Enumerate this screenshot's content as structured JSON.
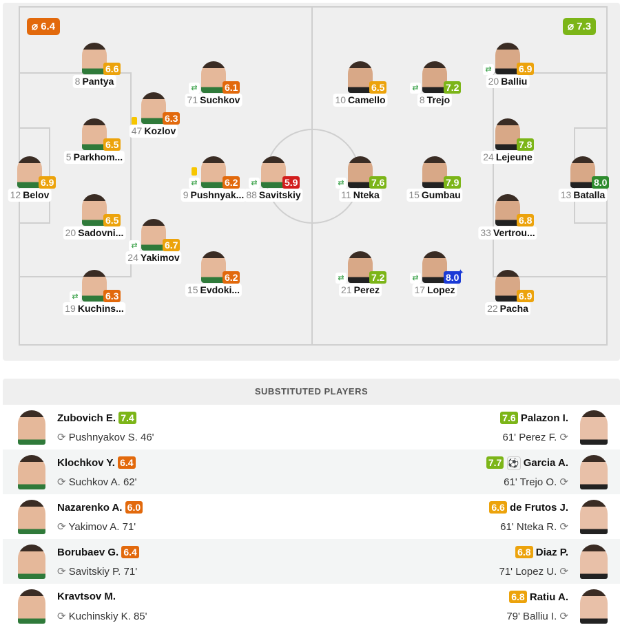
{
  "colors": {
    "r60": "#e2690c",
    "r65": "#eca30c",
    "r70": "#7cb518",
    "r80": "#2e8b2e",
    "low": "#d21e1e",
    "best": "#1a3ad6"
  },
  "home": {
    "avg_label": "⌀ 6.4",
    "avg_color": "#e2690c",
    "players": [
      {
        "num": "8",
        "name": "Pantya",
        "rating": "6.6"
      },
      {
        "num": "71",
        "name": "Suchkov",
        "rating": "6.1",
        "sub": true
      },
      {
        "num": "47",
        "name": "Kozlov",
        "rating": "6.3",
        "yellow": true
      },
      {
        "num": "5",
        "name": "Parkhom...",
        "rating": "6.5"
      },
      {
        "num": "12",
        "name": "Belov",
        "rating": "6.9"
      },
      {
        "num": "9",
        "name": "Pushnyak...",
        "rating": "6.2",
        "yellow": true,
        "sub": true
      },
      {
        "num": "88",
        "name": "Savitskiy",
        "rating": "5.9",
        "sub": true
      },
      {
        "num": "20",
        "name": "Sadovni...",
        "rating": "6.5"
      },
      {
        "num": "24",
        "name": "Yakimov",
        "rating": "6.7",
        "sub": true
      },
      {
        "num": "15",
        "name": "Evdoki...",
        "rating": "6.2"
      },
      {
        "num": "19",
        "name": "Kuchins...",
        "rating": "6.3",
        "sub": true
      }
    ]
  },
  "away": {
    "avg_label": "⌀ 7.3",
    "avg_color": "#7cb518",
    "players": [
      {
        "num": "10",
        "name": "Camello",
        "rating": "6.5"
      },
      {
        "num": "8",
        "name": "Trejo",
        "rating": "7.2",
        "sub": true
      },
      {
        "num": "20",
        "name": "Balliu",
        "rating": "6.9",
        "sub": true
      },
      {
        "num": "24",
        "name": "Lejeune",
        "rating": "7.8"
      },
      {
        "num": "13",
        "name": "Batalla",
        "rating": "8.0"
      },
      {
        "num": "11",
        "name": "Nteka",
        "rating": "7.6",
        "sub": true
      },
      {
        "num": "15",
        "name": "Gumbau",
        "rating": "7.9"
      },
      {
        "num": "33",
        "name": "Vertrou...",
        "rating": "6.8"
      },
      {
        "num": "21",
        "name": "Perez",
        "rating": "7.2",
        "sub": true
      },
      {
        "num": "17",
        "name": "Lopez",
        "rating": "8.0",
        "sub": true,
        "best": true
      },
      {
        "num": "22",
        "name": "Pacha",
        "rating": "6.9"
      }
    ]
  },
  "substituted": {
    "title": "SUBSTITUTED PLAYERS",
    "rows": [
      {
        "home": {
          "name": "Zubovich E.",
          "rating": "7.4",
          "out": "Pushnyakov S. 46'"
        },
        "away": {
          "name": "Palazon I.",
          "rating": "7.6",
          "out": "61' Perez F."
        }
      },
      {
        "home": {
          "name": "Klochkov Y.",
          "rating": "6.4",
          "out": "Suchkov A. 62'"
        },
        "away": {
          "name": "Garcia A.",
          "rating": "7.7",
          "out": "61' Trejo O.",
          "goal": true
        }
      },
      {
        "home": {
          "name": "Nazarenko A.",
          "rating": "6.0",
          "out": "Yakimov A. 71'"
        },
        "away": {
          "name": "de Frutos J.",
          "rating": "6.6",
          "out": "61' Nteka R."
        }
      },
      {
        "home": {
          "name": "Borubaev G.",
          "rating": "6.4",
          "out": "Savitskiy P. 71'"
        },
        "away": {
          "name": "Diaz P.",
          "rating": "6.8",
          "out": "71' Lopez U."
        }
      },
      {
        "home": {
          "name": "Kravtsov M.",
          "rating": "",
          "out": "Kuchinskiy K. 85'"
        },
        "away": {
          "name": "Ratiu A.",
          "rating": "6.8",
          "out": "79' Balliu I."
        }
      }
    ]
  }
}
